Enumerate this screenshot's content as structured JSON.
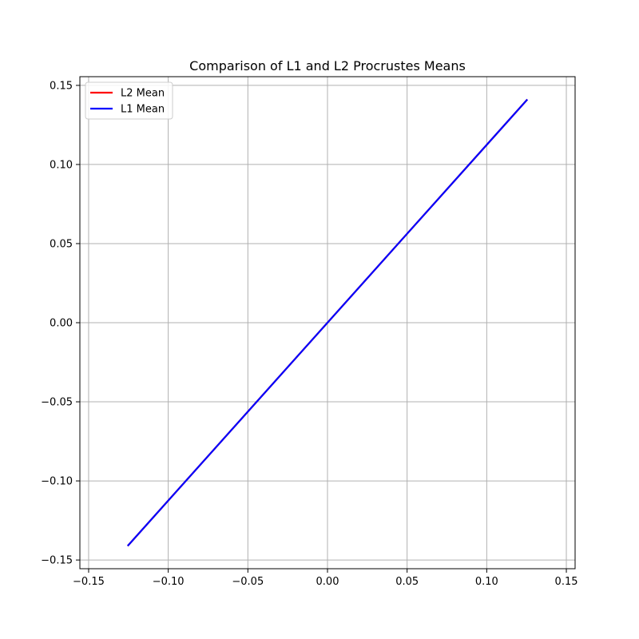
{
  "chart_data": {
    "type": "line",
    "title": "Comparison of L1 and L2 Procrustes Means",
    "xlabel": "",
    "ylabel": "",
    "xlim": [
      -0.1555,
      0.1555
    ],
    "ylim": [
      -0.1555,
      0.1555
    ],
    "xticks": [
      -0.15,
      -0.1,
      -0.05,
      0.0,
      0.05,
      0.1,
      0.15
    ],
    "yticks": [
      -0.15,
      -0.1,
      -0.05,
      0.0,
      0.05,
      0.1,
      0.15
    ],
    "xtick_labels": [
      "−0.15",
      "−0.10",
      "−0.05",
      "0.00",
      "0.05",
      "0.10",
      "0.15"
    ],
    "ytick_labels": [
      "−0.15",
      "−0.10",
      "−0.05",
      "0.00",
      "0.05",
      "0.10",
      "0.15"
    ],
    "grid": true,
    "legend_position": "top-left",
    "series": [
      {
        "name": "L2 Mean",
        "color": "#ff0000",
        "x": [
          -0.1255,
          0.1255
        ],
        "y": [
          -0.1411,
          0.1411
        ]
      },
      {
        "name": "L1 Mean",
        "color": "#0000ff",
        "x": [
          -0.1255,
          0.1255
        ],
        "y": [
          -0.1411,
          0.1411
        ]
      }
    ]
  }
}
